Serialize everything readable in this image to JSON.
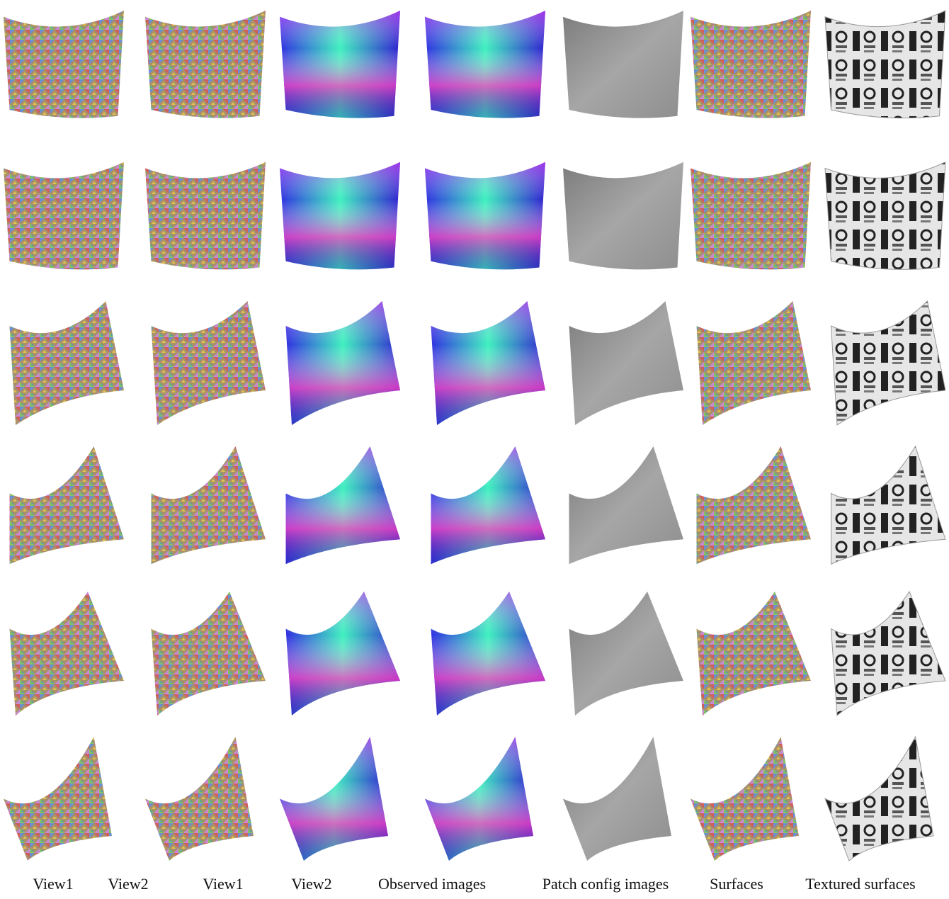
{
  "figure": {
    "labels": [
      "View1",
      "View2",
      "View1",
      "View2",
      "Observed images",
      "Patch config images",
      "Surfaces",
      "Textured surfaces"
    ]
  }
}
